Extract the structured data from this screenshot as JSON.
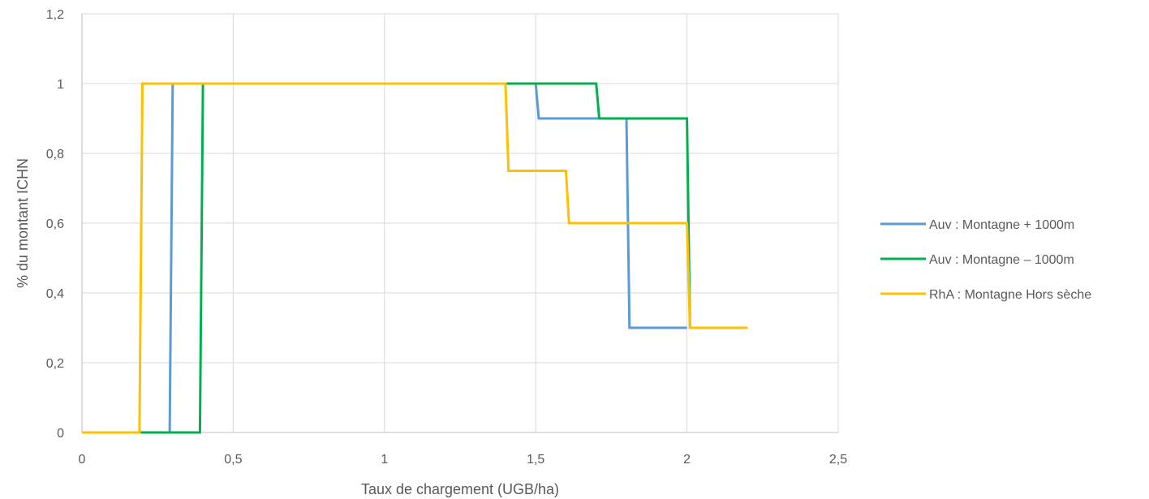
{
  "chart_data": {
    "type": "line",
    "title": "",
    "xlabel": "Taux de chargement (UGB/ha)",
    "ylabel": "% du montant ICHN",
    "xlim": [
      0,
      2.5
    ],
    "ylim": [
      0,
      1.2
    ],
    "x_ticks": [
      0,
      0.5,
      1,
      1.5,
      2,
      2.5
    ],
    "x_tick_labels": [
      "0",
      "0,5",
      "1",
      "1,5",
      "2",
      "2,5"
    ],
    "y_ticks": [
      0,
      0.2,
      0.4,
      0.6,
      0.8,
      1,
      1.2
    ],
    "y_tick_labels": [
      "0",
      "0,2",
      "0,4",
      "0,6",
      "0,8",
      "1",
      "1,2"
    ],
    "grid": true,
    "legend_position": "right",
    "series": [
      {
        "name": "Auv : Montagne + 1000m",
        "color": "#5B9BD5",
        "points": [
          [
            0,
            0
          ],
          [
            0.29,
            0
          ],
          [
            0.3,
            1
          ],
          [
            1.5,
            1
          ],
          [
            1.51,
            0.9
          ],
          [
            1.8,
            0.9
          ],
          [
            1.81,
            0.3
          ],
          [
            2.0,
            0.3
          ]
        ]
      },
      {
        "name": "Auv : Montagne – 1000m",
        "color": "#00B050",
        "points": [
          [
            0,
            0
          ],
          [
            0.39,
            0
          ],
          [
            0.4,
            1
          ],
          [
            1.7,
            1
          ],
          [
            1.71,
            0.9
          ],
          [
            2.0,
            0.9
          ],
          [
            2.01,
            0.3
          ],
          [
            2.2,
            0.3
          ]
        ]
      },
      {
        "name": "RhA : Montagne Hors sèche",
        "color": "#FFC000",
        "points": [
          [
            0,
            0
          ],
          [
            0.19,
            0
          ],
          [
            0.2,
            1
          ],
          [
            1.4,
            1
          ],
          [
            1.41,
            0.75
          ],
          [
            1.6,
            0.75
          ],
          [
            1.61,
            0.6
          ],
          [
            2.0,
            0.6
          ],
          [
            2.01,
            0.3
          ],
          [
            2.2,
            0.3
          ]
        ]
      }
    ]
  }
}
